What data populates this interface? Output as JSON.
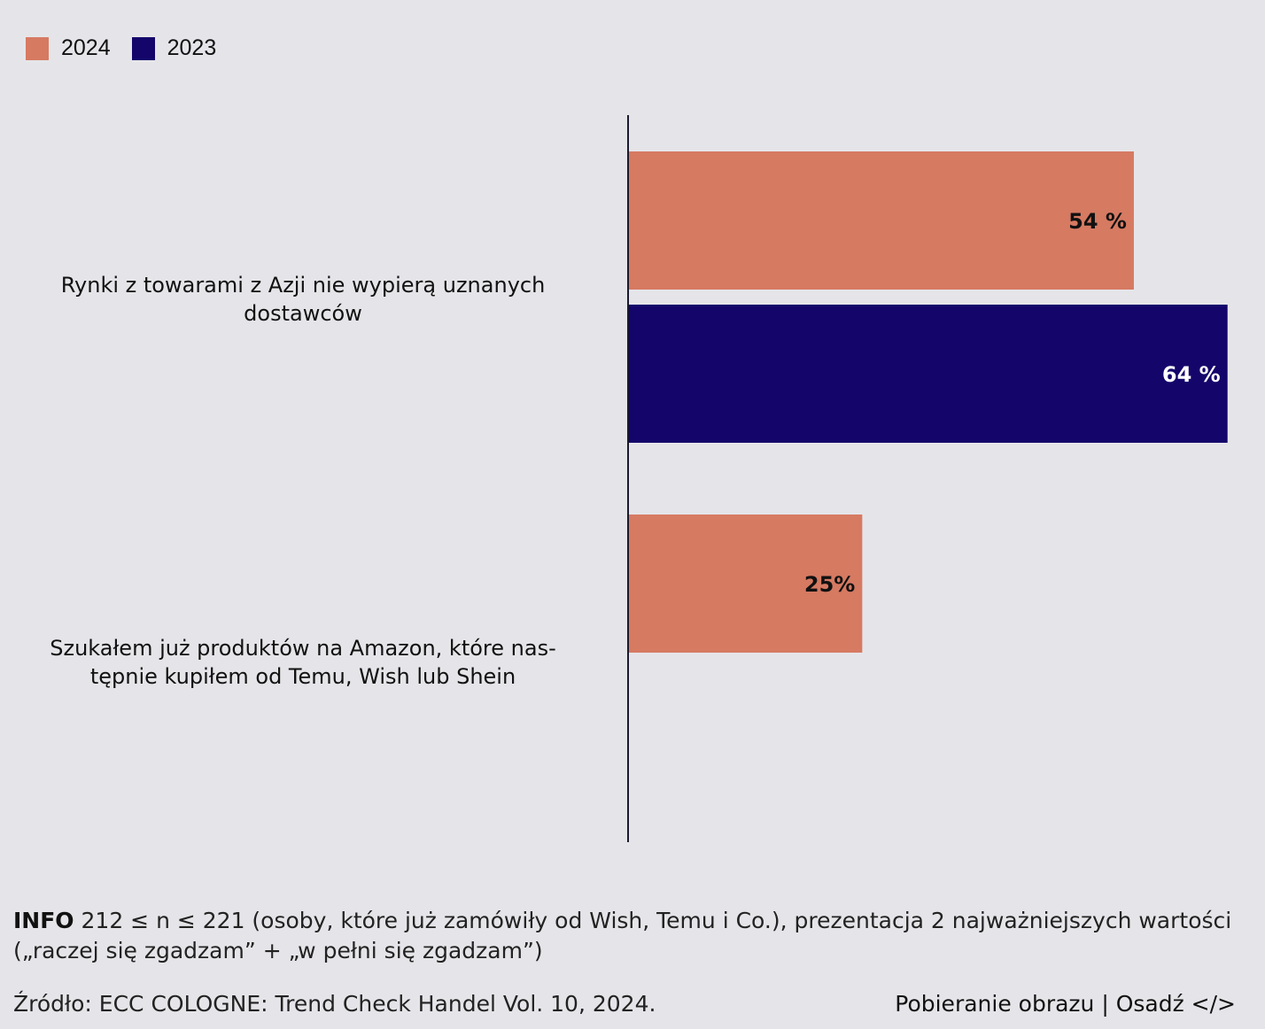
{
  "chart_data": {
    "type": "bar",
    "orientation": "horizontal",
    "categories": [
      "Rynki z towarami z Azji nie wypierą uznanych dostawców",
      "Szukałem już produktów na Amazon, które nas-tępnie kupiłem od Temu, Wish lub Shein"
    ],
    "category_lines": [
      [
        "Rynki z towarami z Azji nie wypierą uznanych",
        "dostawców"
      ],
      [
        "Szukałem już produktów na Amazon, które nas-",
        "tępnie kupiłem od Temu, Wish lub Shein"
      ]
    ],
    "series": [
      {
        "name": "2024",
        "color": "#d67a62",
        "values": [
          54,
          25
        ],
        "labels": [
          "54 %",
          "25%"
        ],
        "label_color": "#111111"
      },
      {
        "name": "2023",
        "color": "#14056b",
        "values": [
          64,
          null
        ],
        "labels": [
          "64 %",
          ""
        ],
        "label_color": "#ffffff"
      }
    ],
    "xlim": [
      0,
      68
    ],
    "legend_position": "top-left",
    "grid": false
  },
  "info": {
    "prefix": "INFO",
    "text": " 212 ≤ n ≤ 221 (osoby, które już zamówiły od Wish, Temu i Co.), prezentacja 2 najważniejszych wartości („raczej się zgadzam” + „w pełni się zgadzam”)"
  },
  "source": "Źródło: ECC COLOGNE: Trend Check Handel Vol. 10, 2024.",
  "links": {
    "download": "Pobieranie obrazu",
    "separator": " | ",
    "embed": "Osadź </>"
  }
}
